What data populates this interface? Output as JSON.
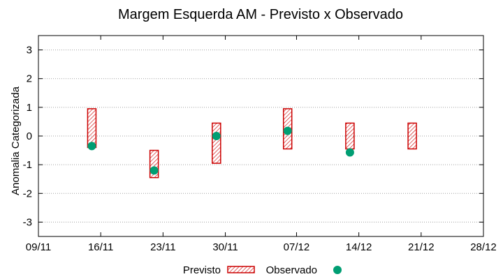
{
  "chart_data": {
    "type": "range-scatter",
    "title": "Margem Esquerda AM - Previsto x Observado",
    "ylabel": "Anomalia Categorizada",
    "xlabel": "",
    "xlim": [
      "09/11",
      "28/12"
    ],
    "ylim": [
      -3.5,
      3.5
    ],
    "x_ticks": [
      "09/11",
      "16/11",
      "23/11",
      "30/11",
      "07/12",
      "14/12",
      "21/12",
      "28/12"
    ],
    "y_ticks": [
      3,
      2,
      1,
      0,
      -1,
      -2,
      -3
    ],
    "y_tick_labels": [
      "3",
      "2",
      "1",
      "0",
      "-1",
      "-2",
      "-3"
    ],
    "grid": true,
    "legend_position": "bottom",
    "series": [
      {
        "name": "Previsto",
        "kind": "range-box",
        "color": "#cc0000",
        "points": [
          {
            "x": "15/11",
            "low": -0.4,
            "high": 0.95
          },
          {
            "x": "22/11",
            "low": -1.45,
            "high": -0.5
          },
          {
            "x": "29/11",
            "low": -0.95,
            "high": 0.45
          },
          {
            "x": "06/12",
            "low": -0.45,
            "high": 0.95
          },
          {
            "x": "13/12",
            "low": -0.45,
            "high": 0.45
          },
          {
            "x": "20/12",
            "low": -0.45,
            "high": 0.45
          }
        ]
      },
      {
        "name": "Observado",
        "kind": "point",
        "color": "#009e73",
        "points": [
          {
            "x": "15/11",
            "y": -0.35
          },
          {
            "x": "22/11",
            "y": -1.2
          },
          {
            "x": "29/11",
            "y": 0.0
          },
          {
            "x": "06/12",
            "y": 0.18
          },
          {
            "x": "13/12",
            "y": -0.57
          }
        ]
      }
    ]
  }
}
